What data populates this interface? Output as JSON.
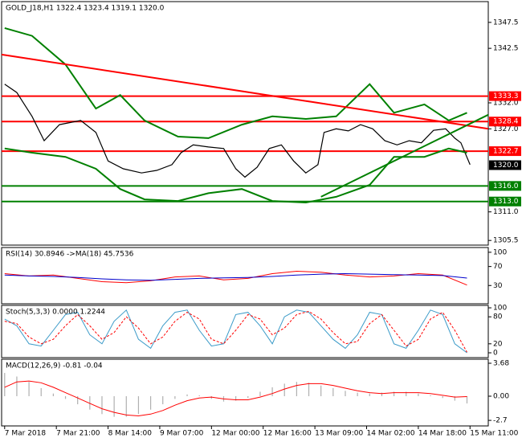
{
  "chart_data": [
    {
      "type": "line",
      "title": "GOLD_J18,H1  1322.4 1323.4 1319.1 1320.0",
      "xlim": [
        0,
        160
      ],
      "ylim": [
        1304.6,
        1351.5
      ],
      "yticks": [
        1347.5,
        1342.5,
        {
          "value": 1332,
          "label": "1332.0"
        },
        {
          "value": 1327,
          "label": "1327.0"
        },
        {
          "value": 1311,
          "label": "1311.0"
        },
        1305.5
      ],
      "series": [
        {
          "type": "line",
          "color": "#000000",
          "width": 1.2,
          "x": [
            1,
            5,
            10,
            14,
            19,
            26,
            31,
            35,
            40,
            46,
            51,
            56,
            59,
            63,
            68,
            73,
            77,
            80,
            84,
            88,
            92,
            96,
            100,
            104,
            106,
            110,
            114,
            118,
            122,
            126,
            130,
            134,
            138,
            142,
            146,
            149,
            151,
            154
          ],
          "values": [
            1335.6,
            1334,
            1329.4,
            1324.7,
            1327.8,
            1328.6,
            1326.3,
            1320.8,
            1319.3,
            1318.5,
            1319,
            1320.1,
            1322.4,
            1323.9,
            1323.5,
            1323.2,
            1319.3,
            1317.7,
            1319.6,
            1323.2,
            1323.9,
            1320.8,
            1318.5,
            1320.1,
            1326.3,
            1327,
            1326.6,
            1327.8,
            1327,
            1324.7,
            1323.9,
            1324.7,
            1324.3,
            1326.7,
            1327,
            1325.2,
            1324.3,
            1320.1
          ]
        },
        {
          "type": "line",
          "color": "#008000",
          "width": 2,
          "x": [
            1,
            10,
            21,
            31,
            39,
            47,
            58,
            68,
            79,
            89,
            100,
            110,
            121,
            129,
            139,
            147,
            153
          ],
          "values": [
            1346.4,
            1344.9,
            1339.4,
            1330.9,
            1333.5,
            1328.6,
            1325.5,
            1325.2,
            1327.8,
            1329.4,
            1328.9,
            1329.4,
            1335.6,
            1330.1,
            1331.7,
            1328.6,
            1330.1
          ]
        },
        {
          "type": "line",
          "color": "#008000",
          "width": 2,
          "x": [
            1,
            10,
            21,
            31,
            39,
            47,
            58,
            68,
            79,
            89,
            100,
            110,
            121,
            129,
            139,
            147,
            153
          ],
          "values": [
            1323.2,
            1322.4,
            1321.6,
            1319.3,
            1315.4,
            1313.4,
            1313.1,
            1314.6,
            1315.4,
            1313.1,
            1312.8,
            1313.9,
            1316.2,
            1321.6,
            1321.6,
            1323.2,
            1322.4
          ]
        },
        {
          "type": "line",
          "color": "#ff0000",
          "width": 2,
          "x": [
            0,
            160
          ],
          "values": [
            1341.3,
            1327
          ]
        },
        {
          "type": "line",
          "color": "#008000",
          "width": 2,
          "x": [
            105,
            160
          ],
          "values": [
            1313.9,
            1329.7
          ]
        }
      ],
      "levels": [
        {
          "value": 1333.3,
          "color": "#ff0000"
        },
        {
          "value": 1328.4,
          "color": "#ff0000"
        },
        {
          "value": 1322.7,
          "color": "#ff0000"
        },
        {
          "value": 1320,
          "label": "1320.0",
          "color": "#000000",
          "line": false
        },
        {
          "value": 1316,
          "label": "1316.0",
          "color": "#008000"
        },
        {
          "value": 1313,
          "label": "1313.0",
          "color": "#008000"
        }
      ]
    },
    {
      "type": "line",
      "title": "RSI(14) 30.8946 ->MA(18) 45.7536",
      "xlim": [
        0,
        160
      ],
      "ylim": [
        -8.5,
        110
      ],
      "yticks": [
        100,
        70,
        30
      ],
      "series": [
        {
          "type": "line",
          "color": "#ff0000",
          "width": 1,
          "x": [
            1,
            9,
            17,
            25,
            33,
            41,
            49,
            57,
            65,
            73,
            81,
            89,
            97,
            105,
            113,
            121,
            129,
            137,
            145,
            153
          ],
          "values": [
            55,
            50,
            52,
            45,
            38,
            36,
            40,
            48,
            50,
            42,
            45,
            55,
            60,
            58,
            52,
            48,
            50,
            55,
            52,
            30.9
          ]
        },
        {
          "type": "line",
          "color": "#0000cc",
          "width": 1,
          "x": [
            1,
            9,
            17,
            25,
            33,
            41,
            49,
            57,
            65,
            73,
            81,
            89,
            97,
            105,
            113,
            121,
            129,
            137,
            145,
            153
          ],
          "values": [
            52,
            50,
            49,
            47,
            44,
            42,
            41,
            43,
            45,
            46,
            47,
            49,
            52,
            54,
            55,
            54,
            53,
            52,
            51,
            45.75
          ]
        }
      ]
    },
    {
      "type": "line",
      "title": "Stoch(5,3,3) 0.0000 1.2244",
      "xlim": [
        0,
        160
      ],
      "ylim": [
        -10.7,
        105.4
      ],
      "yticks": [
        100,
        80,
        20,
        0
      ],
      "series": [
        {
          "type": "line",
          "color": "#3a9ac8",
          "width": 1,
          "x": [
            1,
            5,
            9,
            13,
            17,
            21,
            25,
            29,
            33,
            37,
            41,
            45,
            49,
            53,
            57,
            61,
            65,
            69,
            73,
            77,
            81,
            85,
            89,
            93,
            97,
            101,
            105,
            109,
            113,
            117,
            121,
            125,
            129,
            133,
            137,
            141,
            145,
            149,
            153
          ],
          "values": [
            75,
            60,
            20,
            15,
            50,
            85,
            90,
            40,
            20,
            70,
            95,
            30,
            10,
            60,
            90,
            95,
            50,
            15,
            20,
            85,
            90,
            60,
            20,
            80,
            95,
            90,
            60,
            30,
            10,
            40,
            90,
            85,
            20,
            10,
            50,
            95,
            85,
            20,
            0
          ]
        },
        {
          "type": "line",
          "color": "#ff0000",
          "width": 1,
          "dash": true,
          "x": [
            1,
            5,
            9,
            13,
            17,
            21,
            25,
            29,
            33,
            37,
            41,
            45,
            49,
            53,
            57,
            61,
            65,
            69,
            73,
            77,
            81,
            85,
            89,
            93,
            97,
            101,
            105,
            109,
            113,
            117,
            121,
            125,
            129,
            133,
            137,
            141,
            145,
            149,
            153
          ],
          "values": [
            70,
            65,
            35,
            20,
            30,
            60,
            85,
            60,
            30,
            45,
            80,
            55,
            20,
            35,
            70,
            90,
            75,
            30,
            20,
            50,
            85,
            75,
            40,
            55,
            85,
            92,
            75,
            45,
            20,
            25,
            65,
            85,
            50,
            15,
            30,
            75,
            90,
            50,
            1.2244
          ]
        }
      ]
    },
    {
      "type": "line",
      "title": "MACD(12,26,9) -0.81 -0.04",
      "xlim": [
        0,
        160
      ],
      "ylim": [
        -3.32,
        4.13
      ],
      "yticks": [
        3.68,
        {
          "value": 0,
          "label": "0.00"
        },
        -2.7
      ],
      "xticks": [
        {
          "value": 1,
          "label": "7 Mar 2018"
        },
        {
          "value": 18,
          "label": "7 Mar 21:00"
        },
        {
          "value": 35,
          "label": "8 Mar 14:00"
        },
        {
          "value": 52,
          "label": "9 Mar 07:00"
        },
        {
          "value": 69,
          "label": "12 Mar 00:00"
        },
        {
          "value": 86,
          "label": "12 Mar 16:00"
        },
        {
          "value": 103,
          "label": "13 Mar 09:00"
        },
        {
          "value": 120,
          "label": "14 Mar 02:00"
        },
        {
          "value": 137,
          "label": "14 Mar 18:00"
        },
        {
          "value": 154,
          "label": "15 Mar 11:00"
        }
      ],
      "series": [
        {
          "type": "bar",
          "color": "#b0b0b0",
          "x": [
            1,
            5,
            9,
            13,
            17,
            21,
            25,
            29,
            33,
            37,
            41,
            45,
            49,
            53,
            57,
            61,
            65,
            69,
            73,
            77,
            81,
            85,
            89,
            93,
            97,
            101,
            105,
            109,
            113,
            117,
            121,
            125,
            129,
            133,
            137,
            141,
            145,
            149,
            153
          ],
          "values": [
            2.6,
            2.2,
            1.6,
            0.9,
            0.3,
            -0.3,
            -0.9,
            -1.5,
            -2.0,
            -2.3,
            -2.3,
            -2.0,
            -1.5,
            -0.9,
            -0.3,
            0.2,
            0.1,
            -0.3,
            -0.6,
            -0.5,
            -0.2,
            0.5,
            1.0,
            1.4,
            1.6,
            1.5,
            1.2,
            0.9,
            0.6,
            0.4,
            0.3,
            0.4,
            0.5,
            0.5,
            0.3,
            0.1,
            -0.2,
            -0.5,
            -0.81
          ]
        },
        {
          "type": "line",
          "color": "#ff0000",
          "width": 1,
          "x": [
            1,
            5,
            9,
            13,
            17,
            21,
            25,
            29,
            33,
            37,
            41,
            45,
            49,
            53,
            57,
            61,
            65,
            69,
            73,
            77,
            81,
            85,
            89,
            93,
            97,
            101,
            105,
            109,
            113,
            117,
            121,
            125,
            129,
            133,
            137,
            141,
            145,
            149,
            153
          ],
          "values": [
            1.0,
            1.6,
            1.7,
            1.5,
            1.0,
            0.4,
            -0.2,
            -0.8,
            -1.4,
            -1.8,
            -2.1,
            -2.2,
            -2.0,
            -1.6,
            -1.0,
            -0.5,
            -0.2,
            -0.1,
            -0.3,
            -0.4,
            -0.4,
            -0.1,
            0.3,
            0.8,
            1.2,
            1.4,
            1.4,
            1.2,
            0.9,
            0.6,
            0.4,
            0.3,
            0.4,
            0.4,
            0.4,
            0.3,
            0.1,
            -0.1,
            -0.04
          ]
        }
      ]
    }
  ]
}
